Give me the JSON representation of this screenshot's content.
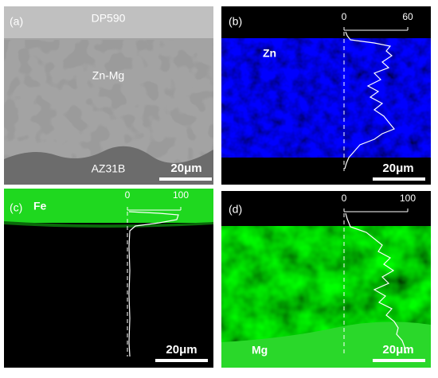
{
  "panels": [
    {
      "label": "(a)",
      "texts": [
        "DP590",
        "Zn-Mg",
        "AZ31B"
      ],
      "scale_bar": "20μm"
    },
    {
      "label": "(b)",
      "element": "Zn",
      "axis_ticks": [
        0,
        60
      ],
      "scale_bar": "20μm"
    },
    {
      "label": "(c)",
      "element": "Fe",
      "axis_ticks": [
        0,
        100
      ],
      "scale_bar": "20μm"
    },
    {
      "label": "(d)",
      "element": "Mg",
      "axis_ticks": [
        0,
        100
      ],
      "scale_bar": "20μm"
    }
  ]
}
